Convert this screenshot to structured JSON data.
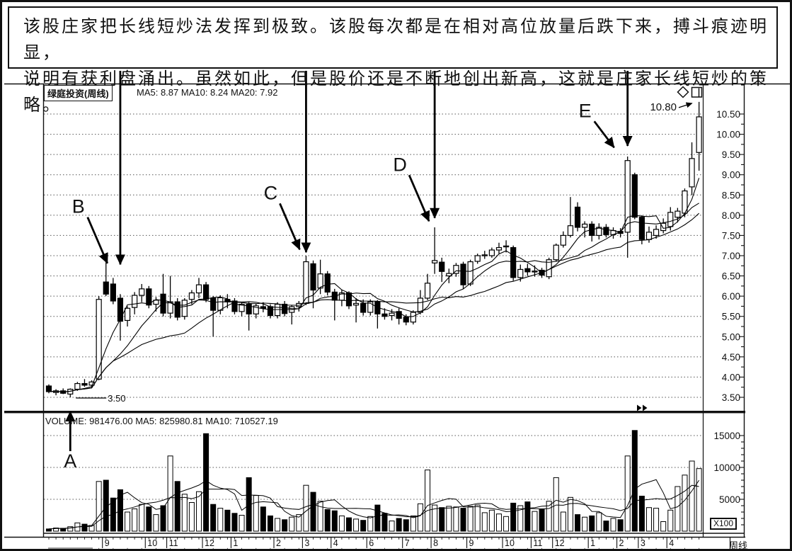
{
  "annotation_box": {
    "text": "该股庄家把长线短炒法发挥到极致。该股每次都是在相对高位放量后跌下来，搏斗痕迹明显，\n说明有获利盘涌出。虽然如此，但是股价还是不断地创出新高，这就是庄家长线短炒的策略。"
  },
  "price_pane": {
    "title": "绿庭投资(周线)",
    "ma_header": "MA5: 8.87  MA10: 8.24  MA20: 7.92"
  },
  "volume_pane": {
    "header": "VOLUME: 981476.00  MA5: 825980.81  MA10: 710527.19",
    "unit_label": "X100"
  },
  "axis": {
    "period_label": "周线"
  },
  "icons": {
    "diamond": "diamond-outline",
    "square": "window-box",
    "fast_forward": "double-right-arrow"
  },
  "chart_data": {
    "type": "candlestick",
    "title": "绿庭投资(周线)",
    "subtitle_price_mas": "MA5: 8.87 MA10: 8.24 MA20: 7.92",
    "subtitle_volume": "VOLUME: 981476.00 MA5: 825980.81 MA10: 710527.19",
    "price_axis_ticks": [
      10.5,
      10.0,
      9.5,
      9.0,
      8.5,
      8.0,
      7.5,
      7.0,
      6.5,
      6.0,
      5.5,
      5.0,
      4.5,
      4.0,
      3.5
    ],
    "volume_axis_ticks": [
      15000,
      10000,
      5000
    ],
    "volume_unit": "X100",
    "grid": "dotted-horizontal",
    "month_labels": [
      {
        "label": "9",
        "index": 8
      },
      {
        "label": "10",
        "index": 14
      },
      {
        "label": "11",
        "index": 17
      },
      {
        "label": "12",
        "index": 22
      },
      {
        "label": "1",
        "index": 26
      },
      {
        "label": "2",
        "index": 32
      },
      {
        "label": "3",
        "index": 36
      },
      {
        "label": "4",
        "index": 40
      },
      {
        "label": "6",
        "index": 45
      },
      {
        "label": "7",
        "index": 50
      },
      {
        "label": "8",
        "index": 54
      },
      {
        "label": "9",
        "index": 59
      },
      {
        "label": "10",
        "index": 64
      },
      {
        "label": "11",
        "index": 68
      },
      {
        "label": "12",
        "index": 71
      },
      {
        "label": "1",
        "index": 76
      },
      {
        "label": "2",
        "index": 80
      },
      {
        "label": "3",
        "index": 83
      },
      {
        "label": "4",
        "index": 87
      }
    ],
    "ma_price": [
      5,
      10,
      20
    ],
    "ma_volume": [
      5,
      10
    ],
    "candles": [
      [
        3.78,
        3.82,
        3.6,
        3.64
      ],
      [
        3.62,
        3.7,
        3.55,
        3.66
      ],
      [
        3.66,
        3.72,
        3.58,
        3.6
      ],
      [
        3.58,
        3.72,
        3.5,
        3.7
      ],
      [
        3.7,
        3.88,
        3.66,
        3.84
      ],
      [
        3.84,
        3.95,
        3.76,
        3.8
      ],
      [
        3.8,
        3.92,
        3.74,
        3.88
      ],
      [
        3.95,
        6.0,
        3.92,
        5.92
      ],
      [
        6.35,
        6.9,
        6.0,
        6.05
      ],
      [
        6.3,
        6.45,
        5.8,
        5.88
      ],
      [
        5.95,
        6.05,
        4.9,
        5.38
      ],
      [
        5.4,
        5.75,
        5.25,
        5.7
      ],
      [
        5.72,
        6.1,
        5.55,
        6.02
      ],
      [
        6.02,
        6.3,
        5.85,
        6.18
      ],
      [
        6.18,
        6.25,
        5.7,
        5.78
      ],
      [
        5.8,
        5.98,
        5.62,
        5.9
      ],
      [
        6.05,
        6.55,
        5.5,
        5.58
      ],
      [
        5.58,
        6.5,
        5.45,
        5.86
      ],
      [
        5.86,
        5.95,
        5.4,
        5.48
      ],
      [
        5.5,
        5.95,
        5.42,
        5.9
      ],
      [
        5.92,
        6.15,
        5.8,
        6.08
      ],
      [
        6.08,
        6.45,
        5.95,
        6.28
      ],
      [
        6.28,
        6.35,
        5.85,
        5.92
      ],
      [
        5.95,
        6.0,
        5.0,
        5.65
      ],
      [
        5.65,
        6.02,
        5.55,
        5.96
      ],
      [
        5.92,
        6.05,
        5.7,
        5.86
      ],
      [
        5.88,
        5.95,
        5.55,
        5.62
      ],
      [
        5.62,
        5.85,
        5.5,
        5.8
      ],
      [
        5.8,
        5.85,
        5.15,
        5.56
      ],
      [
        5.56,
        5.82,
        5.45,
        5.76
      ],
      [
        5.74,
        5.85,
        5.6,
        5.7
      ],
      [
        5.74,
        5.8,
        5.45,
        5.52
      ],
      [
        5.52,
        5.85,
        5.45,
        5.8
      ],
      [
        5.8,
        5.88,
        5.5,
        5.57
      ],
      [
        5.6,
        5.78,
        5.3,
        5.74
      ],
      [
        5.74,
        5.88,
        5.62,
        5.82
      ],
      [
        5.82,
        7.0,
        5.78,
        6.85
      ],
      [
        6.8,
        6.88,
        5.7,
        6.15
      ],
      [
        6.2,
        6.9,
        6.05,
        6.55
      ],
      [
        6.55,
        6.62,
        6.02,
        6.1
      ],
      [
        6.1,
        6.18,
        5.4,
        5.9
      ],
      [
        5.9,
        6.15,
        5.75,
        6.08
      ],
      [
        6.08,
        6.12,
        5.68,
        5.76
      ],
      [
        5.78,
        5.95,
        5.35,
        5.82
      ],
      [
        5.82,
        5.92,
        5.52,
        5.6
      ],
      [
        5.6,
        5.92,
        5.52,
        5.86
      ],
      [
        5.86,
        5.9,
        5.2,
        5.56
      ],
      [
        5.56,
        5.7,
        5.42,
        5.5
      ],
      [
        5.52,
        5.68,
        5.4,
        5.58
      ],
      [
        5.62,
        5.7,
        5.3,
        5.45
      ],
      [
        5.48,
        5.55,
        5.28,
        5.36
      ],
      [
        5.36,
        5.65,
        5.3,
        5.6
      ],
      [
        5.6,
        6.15,
        5.55,
        5.95
      ],
      [
        5.95,
        6.55,
        5.9,
        6.32
      ],
      [
        6.82,
        7.7,
        6.55,
        6.88
      ],
      [
        6.84,
        6.95,
        6.35,
        6.61
      ],
      [
        6.5,
        6.68,
        6.32,
        6.56
      ],
      [
        6.56,
        6.82,
        6.48,
        6.76
      ],
      [
        6.79,
        6.85,
        6.18,
        6.28
      ],
      [
        6.3,
        6.9,
        6.25,
        6.85
      ],
      [
        6.86,
        7.05,
        6.8,
        7.0
      ],
      [
        7.0,
        7.12,
        6.92,
        7.02
      ],
      [
        7.0,
        7.2,
        6.95,
        7.14
      ],
      [
        7.14,
        7.32,
        7.05,
        7.2
      ],
      [
        7.22,
        7.38,
        7.08,
        7.24
      ],
      [
        7.2,
        7.25,
        6.38,
        6.46
      ],
      [
        6.46,
        6.78,
        6.36,
        6.66
      ],
      [
        6.68,
        6.8,
        6.5,
        6.6
      ],
      [
        6.6,
        6.76,
        6.48,
        6.62
      ],
      [
        6.64,
        6.7,
        6.45,
        6.52
      ],
      [
        6.48,
        6.95,
        6.42,
        6.9
      ],
      [
        6.9,
        7.3,
        6.85,
        7.26
      ],
      [
        7.26,
        7.6,
        7.2,
        7.5
      ],
      [
        7.5,
        8.45,
        7.45,
        7.74
      ],
      [
        8.2,
        8.32,
        7.6,
        7.7
      ],
      [
        7.7,
        7.85,
        7.45,
        7.78
      ],
      [
        7.78,
        7.85,
        7.35,
        7.5
      ],
      [
        7.5,
        7.8,
        7.4,
        7.7
      ],
      [
        7.7,
        7.78,
        7.45,
        7.52
      ],
      [
        7.52,
        7.7,
        7.42,
        7.62
      ],
      [
        7.6,
        7.68,
        7.45,
        7.55
      ],
      [
        7.58,
        9.45,
        6.95,
        9.35
      ],
      [
        9.0,
        9.05,
        7.9,
        7.95
      ],
      [
        7.95,
        8.0,
        7.28,
        7.4
      ],
      [
        7.4,
        7.72,
        7.32,
        7.58
      ],
      [
        7.5,
        7.75,
        7.42,
        7.65
      ],
      [
        7.62,
        7.92,
        7.55,
        7.8
      ],
      [
        7.72,
        8.2,
        7.62,
        8.07
      ],
      [
        7.95,
        8.18,
        7.82,
        8.1
      ],
      [
        8.05,
        8.66,
        7.95,
        8.6
      ],
      [
        8.7,
        9.8,
        8.5,
        9.4
      ],
      [
        9.55,
        10.8,
        9.1,
        10.43
      ]
    ],
    "volumes": [
      350,
      500,
      450,
      700,
      1300,
      1100,
      900,
      7800,
      8000,
      5200,
      6500,
      3000,
      3500,
      4200,
      3800,
      2600,
      4000,
      11800,
      7800,
      5800,
      4500,
      6200,
      15300,
      4200,
      3600,
      3300,
      2800,
      2500,
      8400,
      5600,
      3800,
      2400,
      2000,
      1800,
      2200,
      2600,
      7200,
      6100,
      4700,
      3400,
      3200,
      2400,
      2100,
      1900,
      1700,
      2300,
      4100,
      2800,
      1600,
      2000,
      1800,
      2400,
      4300,
      9600,
      4100,
      3700,
      3900,
      3800,
      3600,
      3900,
      4100,
      2900,
      3300,
      2700,
      2300,
      4400,
      4000,
      4600,
      3100,
      3500,
      4700,
      8400,
      3000,
      5300,
      2600,
      2200,
      2400,
      2900,
      1600,
      2000,
      1800,
      11800,
      15800,
      5500,
      3700,
      3600,
      1500,
      3300,
      7000,
      8800,
      11000,
      9815
    ],
    "annotations": {
      "letters": [
        {
          "label": "A",
          "candle": 3,
          "dir": "up",
          "tip_price": 3.46
        },
        {
          "label": "B",
          "candle": 8,
          "dir": "down",
          "tip_price": 6.76,
          "tip_dx": 5
        },
        {
          "label": "C",
          "candle": 36,
          "dir": "down",
          "tip_price": 7.1,
          "tip_dx": -6
        },
        {
          "label": "D",
          "candle": 54,
          "dir": "down",
          "tip_price": 7.8,
          "tip_dx": -5
        },
        {
          "label": "E",
          "candle": 81,
          "dir": "down",
          "tip_price": 9.62,
          "tip_dx": -16,
          "label_dy": -56
        }
      ],
      "drop_arrows": [
        {
          "candle": 10,
          "tip_price": 6.73
        },
        {
          "candle": 36,
          "tip_price": 7.03
        },
        {
          "candle": 54,
          "tip_price": 7.88
        },
        {
          "candle": 81,
          "tip_price": 9.66
        }
      ],
      "callouts": [
        {
          "text": "10.80",
          "candle": 91,
          "price": 10.8
        },
        {
          "text": "3.50",
          "candle": 3,
          "price": 3.5
        }
      ]
    }
  }
}
